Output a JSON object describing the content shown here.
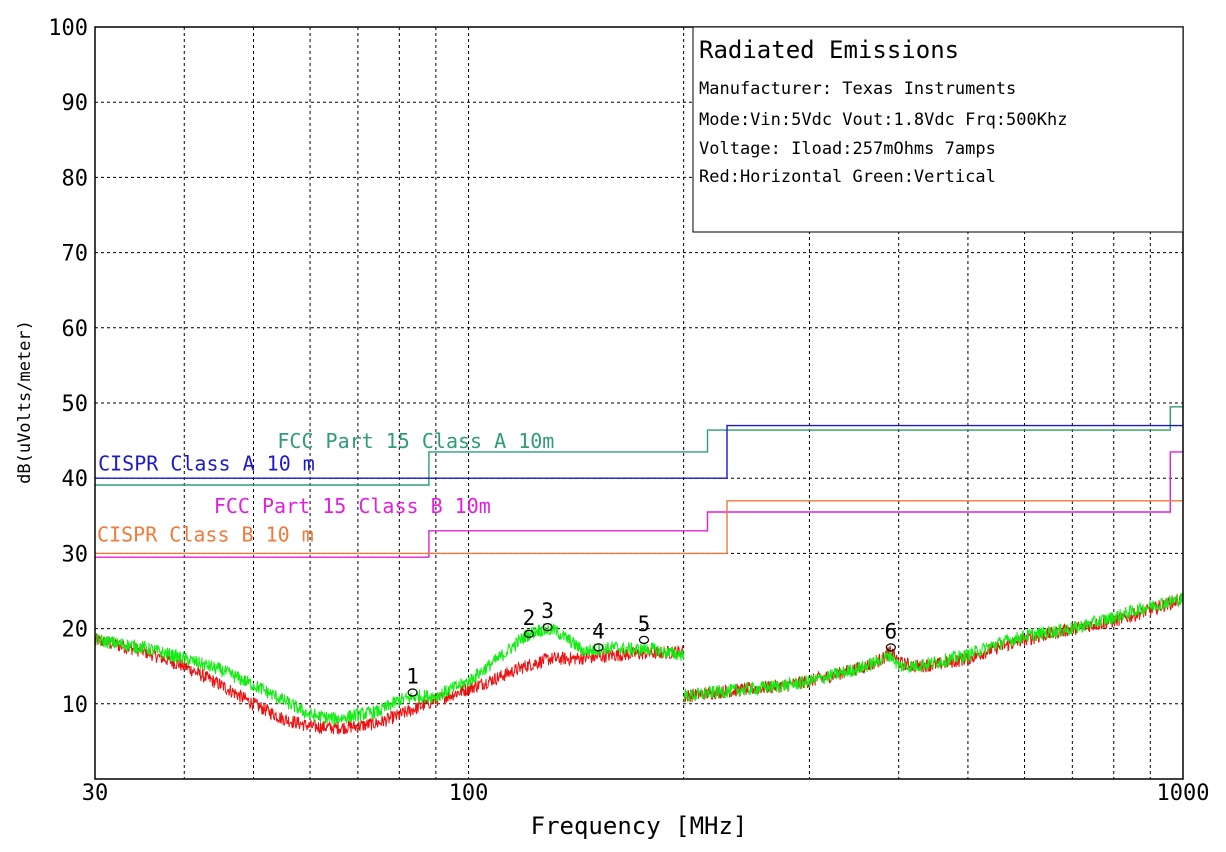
{
  "chart_data": {
    "type": "line",
    "xlabel": "Frequency [MHz]",
    "ylabel": "dB(uVolts/meter)",
    "xscale": "log",
    "xlim": [
      30,
      1000
    ],
    "ylim": [
      0,
      100
    ],
    "grid": true,
    "x_tick_labels": [
      {
        "x": 30,
        "label": "30"
      },
      {
        "x": 100,
        "label": "100"
      },
      {
        "x": 1000,
        "label": "1000"
      }
    ],
    "y_tick_labels": [
      {
        "y": 10,
        "label": "10"
      },
      {
        "y": 20,
        "label": "20"
      },
      {
        "y": 30,
        "label": "30"
      },
      {
        "y": 40,
        "label": "40"
      },
      {
        "y": 50,
        "label": "50"
      },
      {
        "y": 60,
        "label": "60"
      },
      {
        "y": 70,
        "label": "70"
      },
      {
        "y": 80,
        "label": "80"
      },
      {
        "y": 90,
        "label": "90"
      },
      {
        "y": 100,
        "label": "100"
      }
    ],
    "info_box": {
      "title": "Radiated Emissions",
      "lines": [
        "Manufacturer: Texas Instruments",
        "Mode:Vin:5Vdc Vout:1.8Vdc Frq:500Khz",
        "Voltage: Iload:257mOhms 7amps",
        "Red:Horizontal Green:Vertical"
      ]
    },
    "limits": [
      {
        "name": "FCC Part 15 Class A 10m",
        "color": "#2e9c78",
        "points": [
          [
            30,
            39.1
          ],
          [
            88,
            39.1
          ],
          [
            88,
            43.5
          ],
          [
            216,
            43.5
          ],
          [
            216,
            46.4
          ],
          [
            960,
            46.4
          ],
          [
            960,
            49.5
          ],
          [
            1000,
            49.5
          ]
        ],
        "label_at": [
          54,
          44
        ]
      },
      {
        "name": "CISPR Class A 10 m",
        "color": "#1a1acc",
        "points": [
          [
            30,
            40
          ],
          [
            230,
            40
          ],
          [
            230,
            47
          ],
          [
            1000,
            47
          ]
        ],
        "label_at": [
          30.3,
          41
        ]
      },
      {
        "name": "FCC Part 15  Class B 10m",
        "color": "#e020e0",
        "points": [
          [
            30,
            29.5
          ],
          [
            88,
            29.5
          ],
          [
            88,
            33
          ],
          [
            216,
            33
          ],
          [
            216,
            35.5
          ],
          [
            960,
            35.5
          ],
          [
            960,
            43.5
          ],
          [
            1000,
            43.5
          ]
        ],
        "label_at": [
          44,
          35.4
        ]
      },
      {
        "name": "CISPR Class B 10 m",
        "color": "#f07a3a",
        "points": [
          [
            30,
            30
          ],
          [
            230,
            30
          ],
          [
            230,
            37
          ],
          [
            1000,
            37
          ]
        ],
        "label_at": [
          30.2,
          31.6
        ]
      }
    ],
    "series": [
      {
        "name": "Horizontal",
        "color": "#ee1111",
        "segments": [
          [
            [
              30,
              18.5
            ],
            [
              35,
              17.0
            ],
            [
              40,
              15.0
            ],
            [
              45,
              12.5
            ],
            [
              50,
              10.0
            ],
            [
              55,
              8.0
            ],
            [
              60,
              7.0
            ],
            [
              65,
              6.8
            ],
            [
              70,
              7.0
            ],
            [
              75,
              7.5
            ],
            [
              80,
              8.5
            ],
            [
              90,
              10.5
            ],
            [
              100,
              12.0
            ],
            [
              110,
              13.5
            ],
            [
              120,
              15.0
            ],
            [
              130,
              16.0
            ],
            [
              140,
              16.0
            ],
            [
              150,
              16.2
            ],
            [
              160,
              16.5
            ],
            [
              175,
              16.7
            ],
            [
              190,
              16.8
            ],
            [
              200,
              17.0
            ]
          ],
          [
            [
              200,
              11.0
            ],
            [
              220,
              11.5
            ],
            [
              250,
              12.0
            ],
            [
              280,
              12.5
            ],
            [
              300,
              13.0
            ],
            [
              330,
              14.0
            ],
            [
              360,
              15.0
            ],
            [
              380,
              16.0
            ],
            [
              390,
              17.0
            ],
            [
              400,
              15.5
            ],
            [
              420,
              15.0
            ],
            [
              450,
              15.2
            ],
            [
              500,
              16.0
            ],
            [
              550,
              17.5
            ],
            [
              600,
              18.5
            ],
            [
              700,
              20.0
            ],
            [
              800,
              21.0
            ],
            [
              900,
              22.5
            ],
            [
              1000,
              24.0
            ]
          ]
        ]
      },
      {
        "name": "Vertical",
        "color": "#11ee11",
        "segments": [
          [
            [
              30,
              18.5
            ],
            [
              35,
              17.5
            ],
            [
              40,
              16.0
            ],
            [
              45,
              14.5
            ],
            [
              50,
              12.5
            ],
            [
              55,
              10.5
            ],
            [
              60,
              8.5
            ],
            [
              65,
              8.0
            ],
            [
              70,
              8.5
            ],
            [
              75,
              9.0
            ],
            [
              80,
              10.5
            ],
            [
              85,
              11.0
            ],
            [
              90,
              11.0
            ],
            [
              100,
              13.0
            ],
            [
              110,
              16.0
            ],
            [
              120,
              19.0
            ],
            [
              125,
              19.8
            ],
            [
              132,
              19.8
            ],
            [
              138,
              18.5
            ],
            [
              145,
              17.0
            ],
            [
              150,
              17.2
            ],
            [
              160,
              17.5
            ],
            [
              170,
              17.2
            ],
            [
              180,
              17.3
            ],
            [
              190,
              16.8
            ],
            [
              200,
              16.5
            ]
          ],
          [
            [
              200,
              11.0
            ],
            [
              220,
              11.5
            ],
            [
              250,
              12.0
            ],
            [
              280,
              12.5
            ],
            [
              300,
              13.0
            ],
            [
              330,
              14.0
            ],
            [
              360,
              15.0
            ],
            [
              380,
              16.0
            ],
            [
              390,
              16.5
            ],
            [
              400,
              15.0
            ],
            [
              420,
              15.0
            ],
            [
              450,
              15.5
            ],
            [
              500,
              16.5
            ],
            [
              550,
              18.0
            ],
            [
              600,
              19.0
            ],
            [
              700,
              20.0
            ],
            [
              800,
              21.5
            ],
            [
              900,
              23.0
            ],
            [
              1000,
              24.0
            ]
          ]
        ]
      }
    ],
    "markers": [
      {
        "label": "1",
        "x": 83.5,
        "y": 11.5
      },
      {
        "label": "2",
        "x": 121.5,
        "y": 19.3
      },
      {
        "label": "3",
        "x": 129,
        "y": 20.2
      },
      {
        "label": "4",
        "x": 152,
        "y": 17.5
      },
      {
        "label": "5",
        "x": 176,
        "y": 18.5
      },
      {
        "label": "6",
        "x": 390,
        "y": 17.5
      }
    ]
  }
}
